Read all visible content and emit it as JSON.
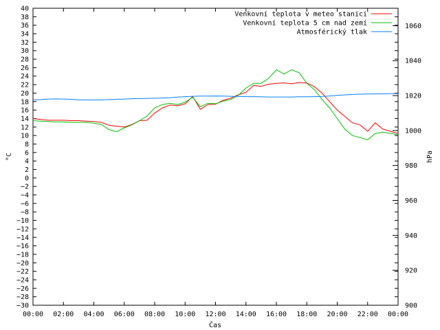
{
  "chart_data": {
    "type": "line",
    "xlabel": "Čas",
    "ylabel": "°C",
    "y2label": "hPa",
    "ylim": [
      -30,
      40
    ],
    "y2lim": [
      900,
      1070
    ],
    "xlim": [
      0,
      24
    ],
    "x_ticks": [
      "00:00",
      "02:00",
      "04:00",
      "06:00",
      "08:00",
      "10:00",
      "12:00",
      "14:00",
      "16:00",
      "18:00",
      "20:00",
      "22:00",
      "00:00"
    ],
    "y_ticks": [
      -30,
      -28,
      -26,
      -24,
      -22,
      -20,
      -18,
      -16,
      -14,
      -12,
      -10,
      -8,
      -6,
      -4,
      -2,
      0,
      2,
      4,
      6,
      8,
      10,
      12,
      14,
      16,
      18,
      20,
      22,
      24,
      26,
      28,
      30,
      32,
      34,
      36,
      38,
      40
    ],
    "y2_ticks": [
      900,
      920,
      940,
      960,
      980,
      1000,
      1020,
      1040,
      1060
    ],
    "legend_position": "top-right",
    "grid": false,
    "x_hours": [
      0,
      0.5,
      1,
      1.5,
      2,
      2.5,
      3,
      3.5,
      4,
      4.5,
      5,
      5.5,
      6,
      6.5,
      7,
      7.5,
      8,
      8.5,
      9,
      9.5,
      10,
      10.5,
      11,
      11.5,
      12,
      12.5,
      13,
      13.5,
      14,
      14.5,
      15,
      15.5,
      16,
      16.5,
      17,
      17.5,
      18,
      18.5,
      19,
      19.5,
      20,
      20.5,
      21,
      21.5,
      22,
      22.5,
      23,
      23.5,
      24
    ],
    "series": [
      {
        "name": "Venkovní teplota v meteo stanici",
        "color": "#ff0000",
        "axis": "left",
        "values": [
          14,
          13.8,
          13.6,
          13.6,
          13.6,
          13.5,
          13.5,
          13.4,
          13.3,
          13.1,
          12.4,
          12.2,
          12.0,
          12.6,
          13.5,
          13.6,
          15.3,
          16.5,
          17.2,
          17.0,
          17.5,
          19.2,
          16.2,
          17.3,
          17.4,
          18.3,
          18.8,
          19.6,
          20.2,
          21.8,
          21.6,
          22.1,
          22.3,
          22.4,
          22.2,
          22.5,
          22.4,
          21.5,
          20.0,
          18.0,
          16.0,
          14.5,
          13.0,
          12.5,
          11.0,
          13.0,
          11.5,
          11.0,
          10.5
        ]
      },
      {
        "name": "Venkovní teplota 5 cm nad zemí",
        "color": "#00c000",
        "axis": "left",
        "values": [
          13.5,
          13.4,
          13.3,
          13.2,
          13.2,
          13.1,
          13.1,
          13.1,
          12.9,
          12.6,
          11.4,
          10.9,
          11.8,
          12.5,
          13.5,
          14.6,
          16.5,
          17.3,
          17.6,
          17.3,
          17.9,
          19.0,
          16.8,
          17.6,
          17.5,
          18.1,
          18.5,
          19.5,
          21.2,
          22.3,
          22.3,
          23.5,
          25.5,
          24.5,
          25.5,
          24.8,
          22.3,
          20.8,
          18.5,
          16.5,
          14.0,
          11.5,
          10.0,
          9.5,
          9.0,
          10.5,
          10.8,
          10.5,
          10.2
        ]
      },
      {
        "name": "Atmosférický tlak",
        "color": "#0080ff",
        "axis": "right",
        "values": [
          1017.5,
          1017.7,
          1018,
          1018.1,
          1018,
          1017.9,
          1017.6,
          1017.6,
          1017.5,
          1017.6,
          1017.7,
          1017.9,
          1018,
          1018.2,
          1018.3,
          1018.4,
          1018.5,
          1018.6,
          1018.8,
          1019.1,
          1019.4,
          1019.6,
          1019.7,
          1019.7,
          1019.8,
          1019.7,
          1019.6,
          1019.5,
          1019.4,
          1019.4,
          1019.3,
          1019.2,
          1019.2,
          1019.2,
          1019.2,
          1019.3,
          1019.3,
          1019.4,
          1019.5,
          1019.8,
          1020.2,
          1020.4,
          1020.6,
          1020.8,
          1020.9,
          1021.0,
          1021.0,
          1021.1,
          1021.2
        ]
      }
    ]
  }
}
